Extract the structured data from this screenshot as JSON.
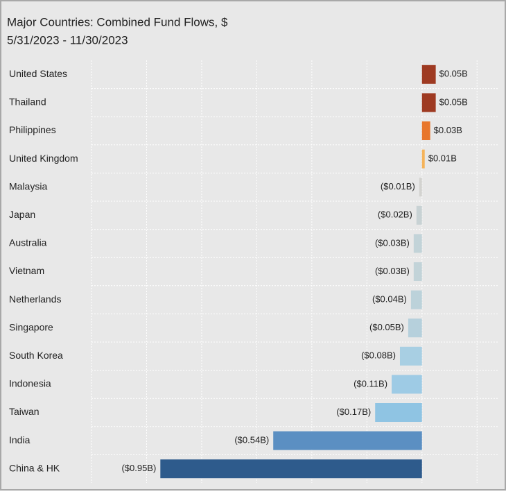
{
  "chart_data": {
    "type": "hbar",
    "title": "Major Countries:  Combined Fund Flows, $",
    "subtitle": "5/31/2023 - 11/30/2023",
    "categories": [
      "United States",
      "Thailand",
      "Philippines",
      "United Kingdom",
      "Malaysia",
      "Japan",
      "Australia",
      "Vietnam",
      "Netherlands",
      "Singapore",
      "South Korea",
      "Indonesia",
      "Taiwan",
      "India",
      "China & HK"
    ],
    "values": [
      0.05,
      0.05,
      0.03,
      0.01,
      -0.01,
      -0.02,
      -0.03,
      -0.03,
      -0.04,
      -0.05,
      -0.08,
      -0.11,
      -0.17,
      -0.54,
      -0.95
    ],
    "value_labels": [
      "$0.05B",
      "$0.05B",
      "$0.03B",
      "$0.01B",
      "($0.01B)",
      "($0.02B)",
      "($0.03B)",
      "($0.03B)",
      "($0.04B)",
      "($0.05B)",
      "($0.08B)",
      "($0.11B)",
      "($0.17B)",
      "($0.54B)",
      "($0.95B)"
    ],
    "colors": [
      "#9e3a22",
      "#9e3a22",
      "#e8762b",
      "#f5b35a",
      "#d3d3d0",
      "#c8d2d4",
      "#c2d3d8",
      "#c2d3d8",
      "#bcd2da",
      "#b6d0dc",
      "#a8cfe3",
      "#9ecbe5",
      "#8fc4e3",
      "#5b8fc2",
      "#2e5b8c"
    ],
    "xlim": [
      -1.2,
      0.28
    ],
    "xticks": [
      -1.2,
      -1,
      -0.8,
      -0.6,
      -0.4,
      -0.2,
      0,
      0.2
    ],
    "grid": true
  }
}
